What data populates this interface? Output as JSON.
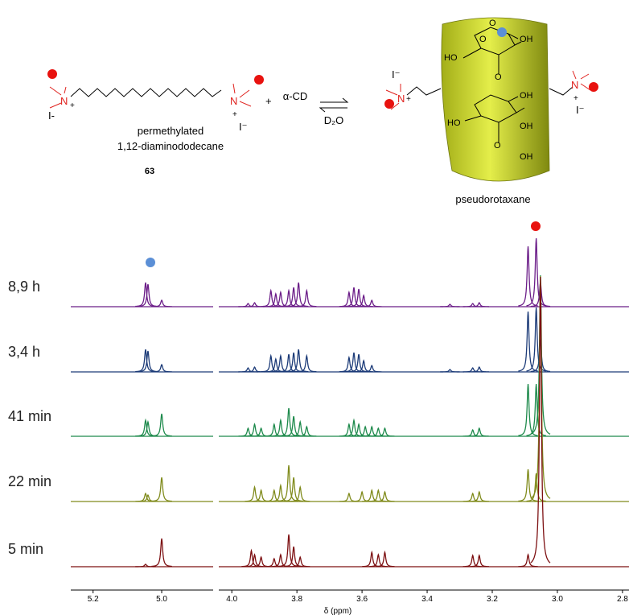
{
  "scheme": {
    "left_counterion_1": "I-",
    "left_counterion_2": "I⁻",
    "nitrogen": "N",
    "charge": "+",
    "plus": "+",
    "reagent": "α-CD",
    "solvent": "D₂O",
    "compound_name_1": "permethylated",
    "compound_name_2": "1,12-diaminododecane",
    "compound_number": "63",
    "product": "pseudorotaxane",
    "cd_labels": [
      "O",
      "OH",
      "HO",
      "O",
      "O",
      "OH",
      "HO",
      "OH",
      "O",
      "OH"
    ]
  },
  "chart_data": {
    "type": "nmr-stack",
    "xlabel": "δ (ppm)",
    "segments": [
      {
        "xlim": [
          5.265,
          4.85
        ],
        "xticks": [
          5.2,
          {
            "value": 5,
            "label": "5.0"
          }
        ]
      },
      {
        "xlim": [
          4.04,
          2.78
        ],
        "xticks": [
          {
            "value": 4,
            "label": "4.0"
          },
          3.8,
          3.6,
          3.4,
          3.2,
          {
            "value": 3,
            "label": "3.0"
          },
          2.8
        ]
      }
    ],
    "series": [
      {
        "name": "8,9 h",
        "color": "#6b1d88",
        "peaks_ppm": [
          5.047,
          5.04,
          5.0,
          3.95,
          3.93,
          3.88,
          3.865,
          3.85,
          3.825,
          3.81,
          3.795,
          3.77,
          3.64,
          3.625,
          3.61,
          3.595,
          3.57,
          3.33,
          3.26,
          3.24,
          3.09,
          3.065,
          3.052
        ],
        "peak_heights": [
          30,
          28,
          8,
          4,
          5,
          20,
          16,
          18,
          20,
          24,
          30,
          20,
          18,
          24,
          22,
          14,
          8,
          3,
          4,
          5,
          75,
          85,
          30
        ]
      },
      {
        "name": "3,4 h",
        "color": "#1c3b78",
        "peaks_ppm": [
          5.047,
          5.04,
          5.0,
          3.95,
          3.93,
          3.88,
          3.865,
          3.85,
          3.825,
          3.81,
          3.795,
          3.77,
          3.64,
          3.625,
          3.61,
          3.595,
          3.57,
          3.33,
          3.26,
          3.24,
          3.09,
          3.065,
          3.052
        ],
        "peak_heights": [
          28,
          26,
          9,
          5,
          6,
          20,
          16,
          20,
          22,
          24,
          28,
          20,
          18,
          24,
          22,
          14,
          8,
          3,
          5,
          6,
          75,
          80,
          40
        ]
      },
      {
        "name": "41 min",
        "color": "#1e8a4c",
        "peaks_ppm": [
          5.047,
          5.04,
          5.0,
          3.95,
          3.93,
          3.91,
          3.87,
          3.85,
          3.825,
          3.81,
          3.79,
          3.77,
          3.64,
          3.625,
          3.61,
          3.59,
          3.57,
          3.55,
          3.53,
          3.26,
          3.24,
          3.09,
          3.065,
          3.052
        ],
        "peak_heights": [
          20,
          18,
          28,
          10,
          15,
          10,
          15,
          20,
          35,
          25,
          18,
          12,
          15,
          20,
          15,
          12,
          12,
          10,
          10,
          8,
          10,
          65,
          65,
          200
        ]
      },
      {
        "name": "22 min",
        "color": "#808b1c",
        "peaks_ppm": [
          5.047,
          5.04,
          5.0,
          3.93,
          3.91,
          3.87,
          3.85,
          3.825,
          3.81,
          3.79,
          3.64,
          3.6,
          3.57,
          3.55,
          3.53,
          3.26,
          3.24,
          3.09,
          3.065,
          3.052
        ],
        "peak_heights": [
          10,
          8,
          30,
          18,
          14,
          14,
          20,
          45,
          30,
          18,
          10,
          12,
          14,
          14,
          12,
          10,
          12,
          40,
          35,
          280
        ]
      },
      {
        "name": "5 min",
        "color": "#7d1012",
        "peaks_ppm": [
          5.047,
          5.0,
          3.94,
          3.93,
          3.91,
          3.87,
          3.85,
          3.825,
          3.81,
          3.79,
          3.57,
          3.55,
          3.53,
          3.26,
          3.24,
          3.09,
          3.052
        ],
        "peak_heights": [
          3,
          35,
          20,
          15,
          12,
          10,
          15,
          40,
          25,
          12,
          18,
          15,
          18,
          14,
          14,
          15,
          360
        ]
      }
    ]
  }
}
